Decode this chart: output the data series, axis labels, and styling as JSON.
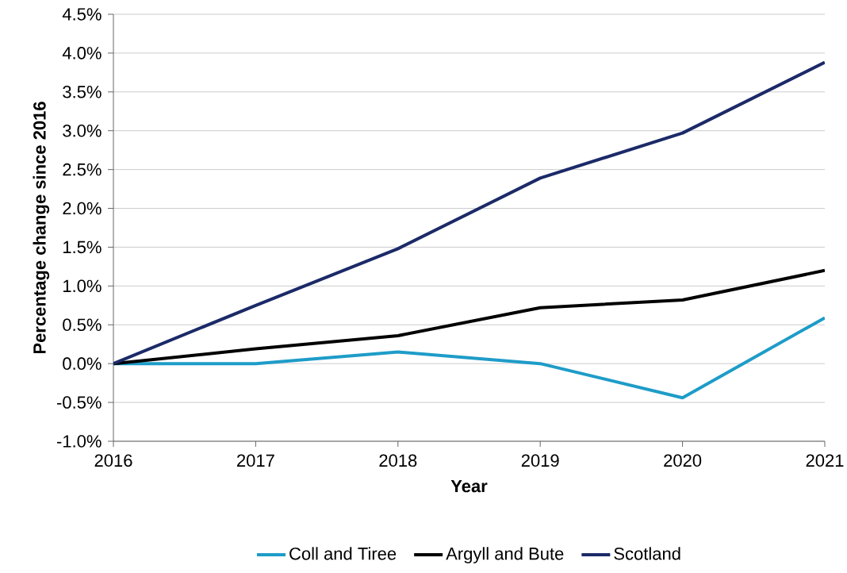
{
  "chart_data": {
    "type": "line",
    "xlabel": "Year",
    "ylabel": "Percentage change since 2016",
    "x": [
      2016,
      2017,
      2018,
      2019,
      2020,
      2021
    ],
    "series": [
      {
        "name": "Coll and Tiree",
        "color": "#1e9cc8",
        "values": [
          0,
          0,
          0.15,
          0,
          -0.44,
          0.59
        ]
      },
      {
        "name": "Argyll and Bute",
        "color": "#000000",
        "values": [
          0,
          0.19,
          0.36,
          0.72,
          0.82,
          1.2
        ]
      },
      {
        "name": "Scotland",
        "color": "#1b2a68",
        "values": [
          0,
          0.75,
          1.48,
          2.39,
          2.97,
          3.88
        ]
      }
    ],
    "xlim": [
      2016,
      2021
    ],
    "xticks": [
      2016,
      2017,
      2018,
      2019,
      2020,
      2021
    ],
    "ylim": [
      -1.0,
      4.5
    ],
    "yticks": [
      {
        "value": -1.0,
        "label": "-1.0%"
      },
      {
        "value": -0.5,
        "label": "-0.5%"
      },
      {
        "value": 0,
        "label": "0.0%"
      },
      {
        "value": 0.5,
        "label": "0.5%"
      },
      {
        "value": 1.0,
        "label": "1.0%"
      },
      {
        "value": 1.5,
        "label": "1.5%"
      },
      {
        "value": 2.0,
        "label": "2.0%"
      },
      {
        "value": 2.5,
        "label": "2.5%"
      },
      {
        "value": 3.0,
        "label": "3.0%"
      },
      {
        "value": 3.5,
        "label": "3.5%"
      },
      {
        "value": 4.0,
        "label": "4.0%"
      },
      {
        "value": 4.5,
        "label": "4.5%"
      }
    ],
    "grid": "y",
    "legend": "bottom",
    "marker": "none",
    "line_style": "solid"
  }
}
